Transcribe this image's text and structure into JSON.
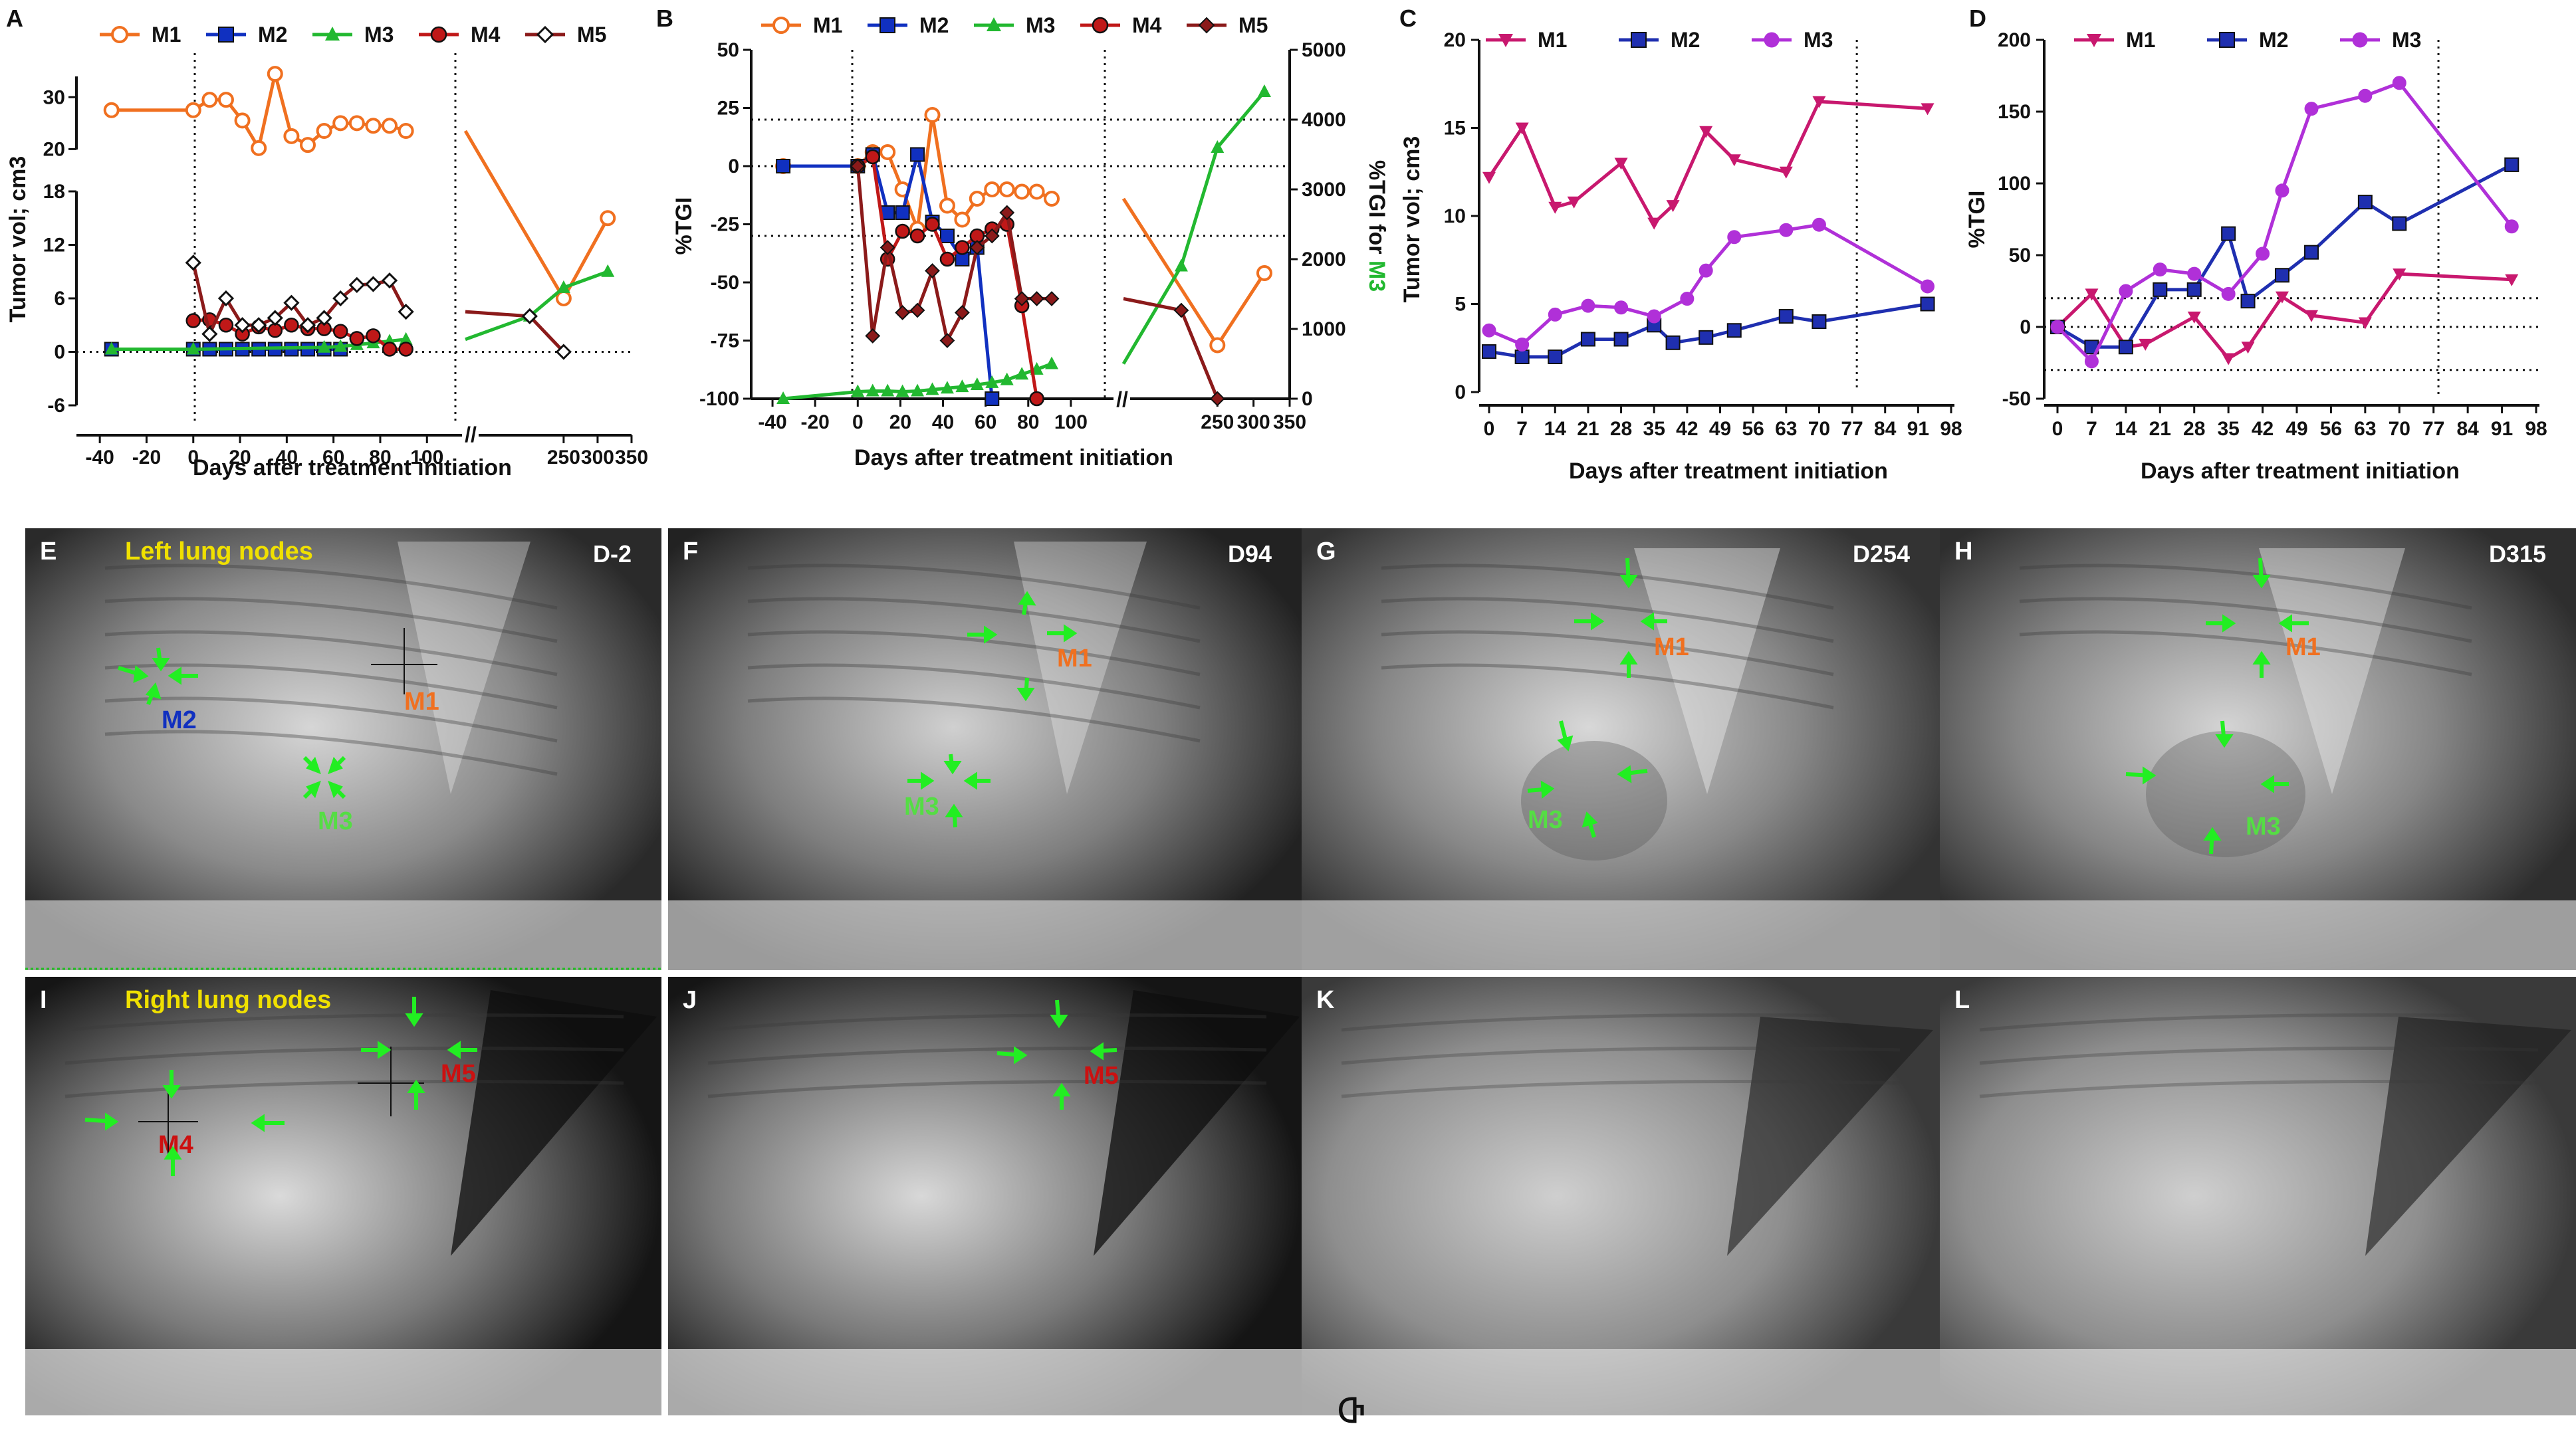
{
  "figure": {
    "bottom_glyph": "Ⴇ"
  },
  "colors": {
    "M1_A": "#f07020",
    "M2_A": "#1030c0",
    "M3_A": "#22b830",
    "M4_A": "#c01818",
    "M5_A": "#8b1a1a",
    "M1_C": "#c8186e",
    "M2_C": "#1f2fb0",
    "M3_C": "#b030d8",
    "label_yellow": "#f0e000",
    "arrow_green": "#22ee22"
  },
  "chart_data": [
    {
      "id": "A",
      "type": "line",
      "panel_label": "A",
      "xlabel": "Days after treatment initiation",
      "ylabel": "Tumor vol; cm3",
      "segments_x": [
        [
          -50,
          115
        ],
        [
          115,
          350
        ]
      ],
      "xticks_left": [
        "-40",
        "-20",
        "0",
        "20",
        "40",
        "60",
        "80",
        "100"
      ],
      "xticks_right": [
        "250",
        "300",
        "350"
      ],
      "y_upper_range": [
        18,
        34
      ],
      "y_upper_ticks": [
        "20",
        "30"
      ],
      "y_lower_range": [
        -6,
        18
      ],
      "y_lower_ticks": [
        "-6",
        "0",
        "6",
        "12",
        "18"
      ],
      "series": [
        {
          "name": "M1",
          "marker": "open-circle",
          "x": [
            -35,
            0,
            7,
            14,
            21,
            28,
            35,
            42,
            49,
            56,
            63,
            70,
            77,
            84,
            91,
            250,
            315
          ],
          "y": [
            27.5,
            27.5,
            29.5,
            29.5,
            25.5,
            20.2,
            34.5,
            22.5,
            20.8,
            23.5,
            25.0,
            25.0,
            24.5,
            24.5,
            23.5,
            6.0,
            15.0
          ]
        },
        {
          "name": "M2",
          "marker": "square",
          "x": [
            -35,
            0,
            7,
            14,
            21,
            28,
            35,
            42,
            49,
            56,
            63
          ],
          "y": [
            0.3,
            0.3,
            0.3,
            0.3,
            0.3,
            0.3,
            0.3,
            0.3,
            0.3,
            0.3,
            0.3
          ]
        },
        {
          "name": "M3",
          "marker": "triangle",
          "x": [
            -35,
            0,
            56,
            63,
            70,
            77,
            84,
            91,
            200,
            250,
            315
          ],
          "y": [
            0.3,
            0.3,
            0.5,
            0.6,
            0.8,
            1.0,
            1.2,
            1.4,
            4.0,
            7.2,
            9.0
          ]
        },
        {
          "name": "M4",
          "marker": "filled-circle",
          "x": [
            0,
            7,
            14,
            21,
            28,
            35,
            42,
            49,
            56,
            63,
            70,
            77,
            84,
            91
          ],
          "y": [
            3.5,
            3.6,
            3.0,
            2.0,
            2.8,
            2.4,
            3.0,
            2.6,
            2.6,
            2.3,
            1.5,
            1.8,
            0.3,
            0.3
          ]
        },
        {
          "name": "M5",
          "marker": "open-diamond",
          "x": [
            0,
            7,
            14,
            21,
            28,
            35,
            42,
            49,
            56,
            63,
            70,
            77,
            84,
            91,
            200,
            250
          ],
          "y": [
            10.0,
            2.0,
            6.0,
            3.0,
            3.0,
            3.8,
            5.5,
            3.0,
            3.8,
            6.0,
            7.5,
            7.6,
            8.0,
            4.5,
            4.0,
            0.0
          ]
        }
      ]
    },
    {
      "id": "B",
      "type": "line",
      "panel_label": "B",
      "xlabel": "Days after treatment initiation",
      "ylabel": "%TGI",
      "ylabel_right_prefix": "%TGI for ",
      "ylabel_right_suffix": "M3",
      "segments_x": [
        [
          -50,
          120
        ],
        [
          120,
          350
        ]
      ],
      "xticks_left": [
        "-40",
        "-20",
        "0",
        "20",
        "40",
        "60",
        "80",
        "100"
      ],
      "xticks_right": [
        "250",
        "300",
        "350"
      ],
      "y_range": [
        -100,
        50
      ],
      "y_ticks": [
        "-100",
        "-75",
        "-50",
        "-25",
        "0",
        "25",
        "50"
      ],
      "y_right_range": [
        0,
        5000
      ],
      "y_right_ticks": [
        "0",
        "1000",
        "2000",
        "3000",
        "4000",
        "5000"
      ],
      "hlines": [
        20,
        0,
        -30
      ],
      "series": [
        {
          "name": "M1",
          "marker": "open-circle",
          "x": [
            -35,
            0,
            7,
            14,
            21,
            28,
            35,
            42,
            49,
            56,
            63,
            70,
            77,
            84,
            91,
            250,
            315
          ],
          "y": [
            0,
            0,
            6,
            6,
            -10,
            -27,
            22,
            -17,
            -23,
            -14,
            -10,
            -10,
            -11,
            -11,
            -14,
            -77,
            -46
          ]
        },
        {
          "name": "M2",
          "marker": "square",
          "x": [
            -35,
            0,
            7,
            14,
            21,
            28,
            35,
            42,
            49,
            56,
            63
          ],
          "y": [
            0,
            0,
            5,
            -20,
            -20,
            5,
            -24,
            -30,
            -40,
            -35,
            -100
          ]
        },
        {
          "name": "M3",
          "marker": "triangle",
          "axis": "right",
          "x": [
            -35,
            0,
            7,
            14,
            21,
            28,
            35,
            42,
            49,
            56,
            63,
            70,
            77,
            84,
            91,
            200,
            250,
            315
          ],
          "y": [
            0,
            100,
            110,
            110,
            100,
            110,
            130,
            150,
            170,
            200,
            230,
            270,
            350,
            420,
            500,
            1900,
            3600,
            4400
          ]
        },
        {
          "name": "M4",
          "marker": "filled-circle",
          "x": [
            0,
            7,
            14,
            21,
            28,
            35,
            42,
            49,
            56,
            63,
            70,
            77,
            84
          ],
          "y": [
            0,
            4,
            -40,
            -28,
            -30,
            -25,
            -40,
            -35,
            -30,
            -27,
            -25,
            -60,
            -100
          ]
        },
        {
          "name": "M5",
          "marker": "filled-diamond",
          "x": [
            0,
            7,
            14,
            21,
            28,
            35,
            42,
            49,
            56,
            63,
            70,
            77,
            84,
            91,
            200,
            250
          ],
          "y": [
            0,
            -73,
            -35,
            -63,
            -62,
            -45,
            -75,
            -63,
            -35,
            -30,
            -20,
            -57,
            -57,
            -57,
            -62,
            -100
          ]
        }
      ]
    },
    {
      "id": "C",
      "type": "line",
      "panel_label": "C",
      "xlabel": "Days after treatment initiation",
      "ylabel": "Tumor vol; cm3",
      "x_range": [
        0,
        98
      ],
      "xticks": [
        "0",
        "7",
        "14",
        "21",
        "28",
        "35",
        "42",
        "49",
        "56",
        "63",
        "70",
        "77",
        "84",
        "91",
        "98"
      ],
      "y_range": [
        0,
        20
      ],
      "y_ticks": [
        "0",
        "5",
        "10",
        "15",
        "20"
      ],
      "vline": 78,
      "series": [
        {
          "name": "M1",
          "marker": "down-triangle",
          "x": [
            0,
            7,
            14,
            18,
            28,
            35,
            39,
            46,
            52,
            63,
            70,
            93
          ],
          "y": [
            12.2,
            15.0,
            10.5,
            10.8,
            13.0,
            9.6,
            10.6,
            14.8,
            13.2,
            12.5,
            16.5,
            16.1
          ]
        },
        {
          "name": "M2",
          "marker": "square",
          "x": [
            0,
            7,
            14,
            21,
            28,
            35,
            39,
            46,
            52,
            63,
            70,
            93
          ],
          "y": [
            2.3,
            2.0,
            2.0,
            3.0,
            3.0,
            3.8,
            2.8,
            3.1,
            3.5,
            4.3,
            4.0,
            5.0
          ]
        },
        {
          "name": "M3",
          "marker": "circle",
          "x": [
            0,
            7,
            14,
            21,
            28,
            35,
            42,
            46,
            52,
            63,
            70,
            93
          ],
          "y": [
            3.5,
            2.7,
            4.4,
            4.9,
            4.8,
            4.3,
            5.3,
            6.9,
            8.8,
            9.2,
            9.5,
            6.0
          ]
        }
      ]
    },
    {
      "id": "D",
      "type": "line",
      "panel_label": "D",
      "xlabel": "Days after treatment initiation",
      "ylabel": "%TGI",
      "x_range": [
        0,
        98
      ],
      "xticks": [
        "0",
        "7",
        "14",
        "21",
        "28",
        "35",
        "42",
        "49",
        "56",
        "63",
        "70",
        "77",
        "84",
        "91",
        "98"
      ],
      "y_range": [
        -50,
        200
      ],
      "y_ticks": [
        "-50",
        "0",
        "50",
        "100",
        "150",
        "200"
      ],
      "hlines": [
        20,
        0,
        -30
      ],
      "vline": 78,
      "series": [
        {
          "name": "M1",
          "marker": "down-triangle",
          "x": [
            0,
            7,
            14,
            18,
            28,
            35,
            39,
            46,
            52,
            63,
            70,
            93
          ],
          "y": [
            0,
            23,
            -14,
            -12,
            7,
            -22,
            -14,
            21,
            8,
            3,
            37,
            33
          ]
        },
        {
          "name": "M2",
          "marker": "square",
          "x": [
            0,
            7,
            14,
            21,
            28,
            35,
            39,
            46,
            52,
            63,
            70,
            93
          ],
          "y": [
            0,
            -14,
            -14,
            26,
            26,
            65,
            18,
            36,
            52,
            87,
            72,
            113
          ]
        },
        {
          "name": "M3",
          "marker": "circle",
          "x": [
            0,
            7,
            14,
            21,
            28,
            35,
            42,
            46,
            52,
            63,
            70,
            93
          ],
          "y": [
            0,
            -24,
            25,
            40,
            37,
            23,
            51,
            95,
            152,
            161,
            170,
            70
          ]
        }
      ]
    }
  ],
  "xray": {
    "E": {
      "label": "E",
      "title": "Left lung nodes",
      "day": "D-2",
      "nodes": [
        "M1",
        "M2",
        "M3"
      ]
    },
    "F": {
      "label": "F",
      "day": "D94",
      "nodes": [
        "M1",
        "M3"
      ]
    },
    "G": {
      "label": "G",
      "day": "D254",
      "nodes": [
        "M1",
        "M3"
      ]
    },
    "H": {
      "label": "H",
      "day": "D315",
      "nodes": [
        "M1",
        "M3"
      ]
    },
    "I": {
      "label": "I",
      "title": "Right lung nodes",
      "nodes": [
        "M4",
        "M5"
      ]
    },
    "J": {
      "label": "J",
      "nodes": [
        "M5"
      ]
    },
    "K": {
      "label": "K"
    },
    "L": {
      "label": "L"
    }
  }
}
